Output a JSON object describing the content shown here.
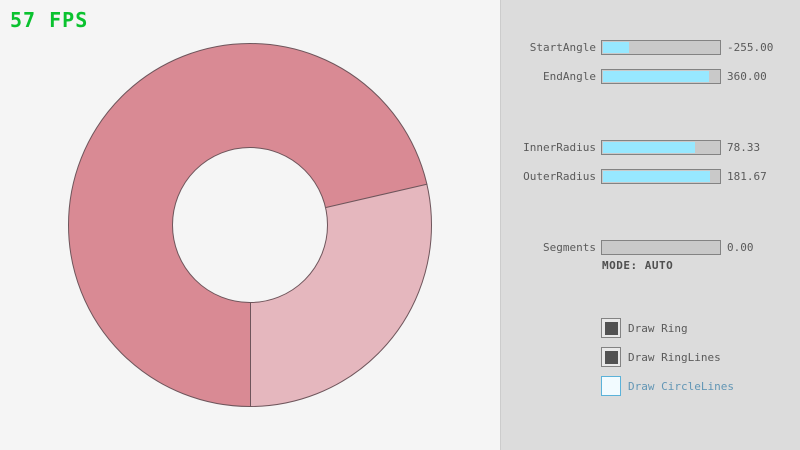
{
  "fps": {
    "text": "57 FPS"
  },
  "ring": {
    "light_start_deg": 77,
    "light_end_deg": 180
  },
  "panel": {
    "sliders": [
      {
        "label": "StartAngle",
        "value": "-255.00",
        "fill_pct": 21.7
      },
      {
        "label": "EndAngle",
        "value": "360.00",
        "fill_pct": 90.0
      },
      {
        "label": "InnerRadius",
        "value": "78.33",
        "fill_pct": 78.3
      },
      {
        "label": "OuterRadius",
        "value": "181.67",
        "fill_pct": 90.8
      },
      {
        "label": "Segments",
        "value": "0.00",
        "fill_pct": 0
      }
    ],
    "mode_text": "MODE: AUTO",
    "checkboxes": [
      {
        "label": "Draw Ring",
        "checked": true,
        "focused": false
      },
      {
        "label": "Draw RingLines",
        "checked": true,
        "focused": false
      },
      {
        "label": "Draw CircleLines",
        "checked": false,
        "focused": true
      }
    ]
  },
  "colors": {
    "background": "#F5F5F5",
    "panel_bg": "#DCDCDC",
    "ring_single": "#E5B7BE",
    "ring_double": "#D98A94",
    "ring_outline": "#6E555B",
    "slider_fill": "#97E8FF",
    "slider_track": "#C9C9C9",
    "slider_border": "#838383",
    "text_gray": "#5A5A5A",
    "mode_text_color": "#4F4F4F",
    "check_inner": "#525252",
    "focus_blue_border": "#5BB2D9",
    "focus_blue_text": "#6296B5",
    "fps_green": "#0AC22F"
  }
}
